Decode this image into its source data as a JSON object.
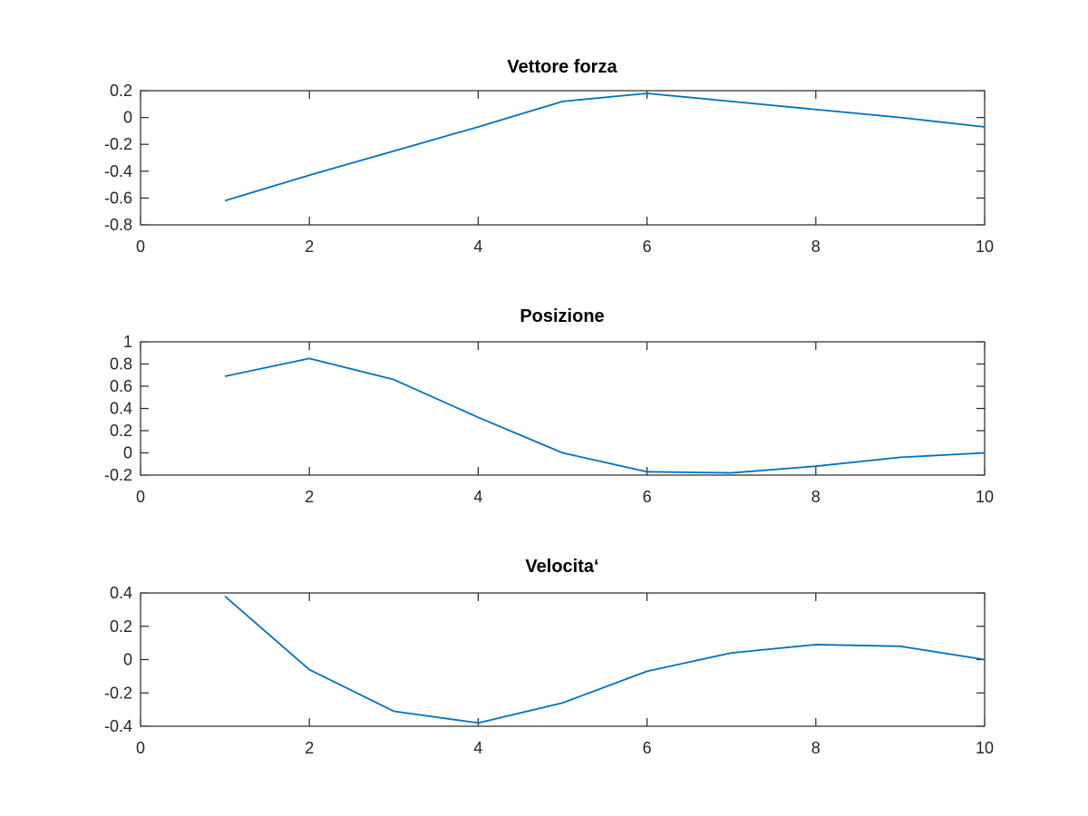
{
  "chart_data": [
    {
      "type": "line",
      "title": "Vettore forza",
      "xlabel": "",
      "ylabel": "",
      "xlim": [
        0,
        10
      ],
      "ylim": [
        -0.8,
        0.2
      ],
      "xticks": [
        0,
        2,
        4,
        6,
        8,
        10
      ],
      "xtick_labels": [
        "0",
        "2",
        "4",
        "6",
        "8",
        "10"
      ],
      "yticks": [
        -0.8,
        -0.6,
        -0.4,
        -0.2,
        0,
        0.2
      ],
      "ytick_labels": [
        "-0.8",
        "-0.6",
        "-0.4",
        "-0.2",
        "0",
        "0.2"
      ],
      "grid": false,
      "series": [
        {
          "color": "#0072BD",
          "x": [
            1,
            2,
            3,
            4,
            5,
            6,
            7,
            8,
            9,
            10
          ],
          "values": [
            -0.62,
            -0.43,
            -0.25,
            -0.07,
            0.12,
            0.18,
            0.12,
            0.06,
            0.0,
            -0.07
          ]
        }
      ]
    },
    {
      "type": "line",
      "title": "Posizione",
      "xlabel": "",
      "ylabel": "",
      "xlim": [
        0,
        10
      ],
      "ylim": [
        -0.2,
        1
      ],
      "xticks": [
        0,
        2,
        4,
        6,
        8,
        10
      ],
      "xtick_labels": [
        "0",
        "2",
        "4",
        "6",
        "8",
        "10"
      ],
      "yticks": [
        -0.2,
        0,
        0.2,
        0.4,
        0.6,
        0.8,
        1
      ],
      "ytick_labels": [
        "-0.2",
        "0",
        "0.2",
        "0.4",
        "0.6",
        "0.8",
        "1"
      ],
      "grid": false,
      "series": [
        {
          "color": "#0072BD",
          "x": [
            1,
            2,
            3,
            4,
            5,
            6,
            7,
            8,
            9,
            10
          ],
          "values": [
            0.69,
            0.85,
            0.66,
            0.32,
            0.0,
            -0.17,
            -0.18,
            -0.12,
            -0.04,
            0.0
          ]
        }
      ]
    },
    {
      "type": "line",
      "title": "Velocita‘",
      "xlabel": "",
      "ylabel": "",
      "xlim": [
        0,
        10
      ],
      "ylim": [
        -0.4,
        0.4
      ],
      "xticks": [
        0,
        2,
        4,
        6,
        8,
        10
      ],
      "xtick_labels": [
        "0",
        "2",
        "4",
        "6",
        "8",
        "10"
      ],
      "yticks": [
        -0.4,
        -0.2,
        0,
        0.2,
        0.4
      ],
      "ytick_labels": [
        "-0.4",
        "-0.2",
        "0",
        "0.2",
        "0.4"
      ],
      "grid": false,
      "series": [
        {
          "color": "#0072BD",
          "x": [
            1,
            2,
            3,
            4,
            5,
            6,
            7,
            8,
            9,
            10
          ],
          "values": [
            0.38,
            -0.06,
            -0.31,
            -0.38,
            -0.26,
            -0.07,
            0.04,
            0.09,
            0.08,
            0.0
          ]
        }
      ]
    }
  ]
}
